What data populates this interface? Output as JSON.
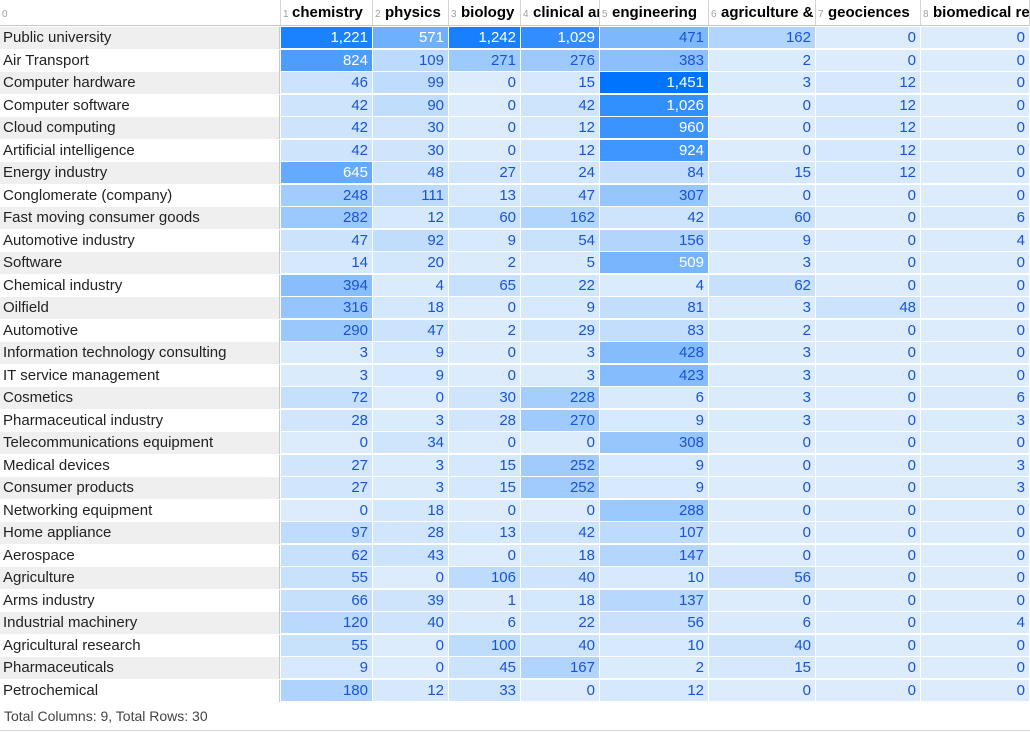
{
  "corner_label": "0",
  "columns": [
    {
      "index": "1",
      "label": "chemistry"
    },
    {
      "index": "2",
      "label": "physics"
    },
    {
      "index": "3",
      "label": "biology"
    },
    {
      "index": "4",
      "label": "clinical and medicine"
    },
    {
      "index": "5",
      "label": "engineering"
    },
    {
      "index": "6",
      "label": "agriculture & food"
    },
    {
      "index": "7",
      "label": "geociences"
    },
    {
      "index": "8",
      "label": "biomedical research"
    }
  ],
  "rows": [
    {
      "label": "Public university",
      "values": [
        1221,
        571,
        1242,
        1029,
        471,
        162,
        0,
        0
      ]
    },
    {
      "label": "Air Transport",
      "values": [
        824,
        109,
        271,
        276,
        383,
        2,
        0,
        0
      ]
    },
    {
      "label": "Computer hardware",
      "values": [
        46,
        99,
        0,
        15,
        1451,
        3,
        12,
        0
      ]
    },
    {
      "label": "Computer software",
      "values": [
        42,
        90,
        0,
        42,
        1026,
        0,
        12,
        0
      ]
    },
    {
      "label": "Cloud computing",
      "values": [
        42,
        30,
        0,
        12,
        960,
        0,
        12,
        0
      ]
    },
    {
      "label": "Artificial intelligence",
      "values": [
        42,
        30,
        0,
        12,
        924,
        0,
        12,
        0
      ]
    },
    {
      "label": "Energy industry",
      "values": [
        645,
        48,
        27,
        24,
        84,
        15,
        12,
        0
      ]
    },
    {
      "label": "Conglomerate (company)",
      "values": [
        248,
        111,
        13,
        47,
        307,
        0,
        0,
        0
      ]
    },
    {
      "label": "Fast moving consumer goods",
      "values": [
        282,
        12,
        60,
        162,
        42,
        60,
        0,
        6
      ]
    },
    {
      "label": "Automotive industry",
      "values": [
        47,
        92,
        9,
        54,
        156,
        9,
        0,
        4
      ]
    },
    {
      "label": "Software",
      "values": [
        14,
        20,
        2,
        5,
        509,
        3,
        0,
        0
      ]
    },
    {
      "label": "Chemical industry",
      "values": [
        394,
        4,
        65,
        22,
        4,
        62,
        0,
        0
      ]
    },
    {
      "label": "Oilfield",
      "values": [
        316,
        18,
        0,
        9,
        81,
        3,
        48,
        0
      ]
    },
    {
      "label": "Automotive",
      "values": [
        290,
        47,
        2,
        29,
        83,
        2,
        0,
        0
      ]
    },
    {
      "label": "Information technology consulting",
      "values": [
        3,
        9,
        0,
        3,
        428,
        3,
        0,
        0
      ]
    },
    {
      "label": "IT service management",
      "values": [
        3,
        9,
        0,
        3,
        423,
        3,
        0,
        0
      ]
    },
    {
      "label": "Cosmetics",
      "values": [
        72,
        0,
        30,
        228,
        6,
        3,
        0,
        6
      ]
    },
    {
      "label": "Pharmaceutical industry",
      "values": [
        28,
        3,
        28,
        270,
        9,
        3,
        0,
        3
      ]
    },
    {
      "label": "Telecommunications equipment",
      "values": [
        0,
        34,
        0,
        0,
        308,
        0,
        0,
        0
      ]
    },
    {
      "label": "Medical devices",
      "values": [
        27,
        3,
        15,
        252,
        9,
        0,
        0,
        3
      ]
    },
    {
      "label": "Consumer products",
      "values": [
        27,
        3,
        15,
        252,
        9,
        0,
        0,
        3
      ]
    },
    {
      "label": "Networking equipment",
      "values": [
        0,
        18,
        0,
        0,
        288,
        0,
        0,
        0
      ]
    },
    {
      "label": "Home appliance",
      "values": [
        97,
        28,
        13,
        42,
        107,
        0,
        0,
        0
      ]
    },
    {
      "label": "Aerospace",
      "values": [
        62,
        43,
        0,
        18,
        147,
        0,
        0,
        0
      ]
    },
    {
      "label": "Agriculture",
      "values": [
        55,
        0,
        106,
        40,
        10,
        56,
        0,
        0
      ]
    },
    {
      "label": "Arms industry",
      "values": [
        66,
        39,
        1,
        18,
        137,
        0,
        0,
        0
      ]
    },
    {
      "label": "Industrial machinery",
      "values": [
        120,
        40,
        6,
        22,
        56,
        6,
        0,
        4
      ]
    },
    {
      "label": "Agricultural research",
      "values": [
        55,
        0,
        100,
        40,
        10,
        40,
        0,
        0
      ]
    },
    {
      "label": "Pharmaceuticals",
      "values": [
        9,
        0,
        45,
        167,
        2,
        15,
        0,
        0
      ]
    },
    {
      "label": "Petrochemical",
      "values": [
        180,
        12,
        33,
        0,
        12,
        0,
        0,
        0
      ]
    }
  ],
  "footer": "Total Columns: 9, Total Rows: 30",
  "colors": {
    "cell_light": "#dcecfc",
    "cell_dark": "#0073ff",
    "row_label_even": "#efefef",
    "row_label_odd": "#ffffff",
    "text_light_bg": "#1a53d8",
    "text_dark_bg": "#ffffff"
  }
}
